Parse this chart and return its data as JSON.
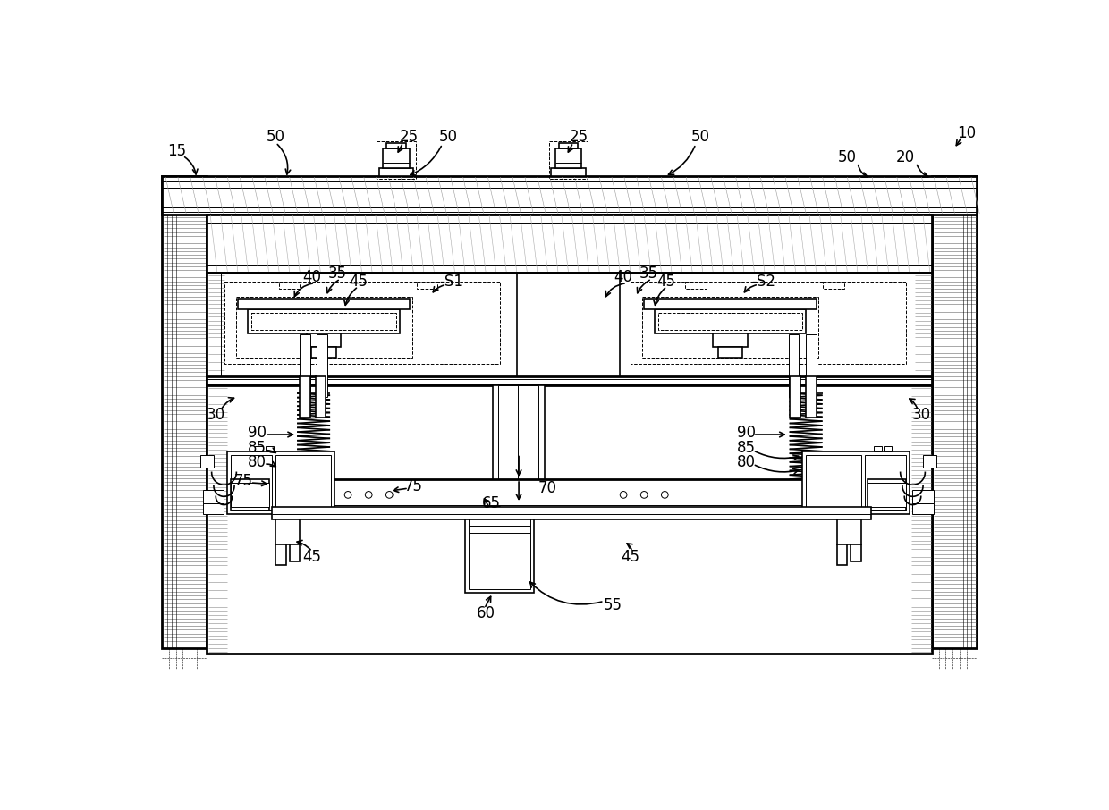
{
  "bg_color": "#ffffff",
  "lc": "#000000",
  "fs": 12,
  "lw_thick": 2.0,
  "lw_main": 1.2,
  "lw_thin": 0.7,
  "lw_hair": 0.4
}
